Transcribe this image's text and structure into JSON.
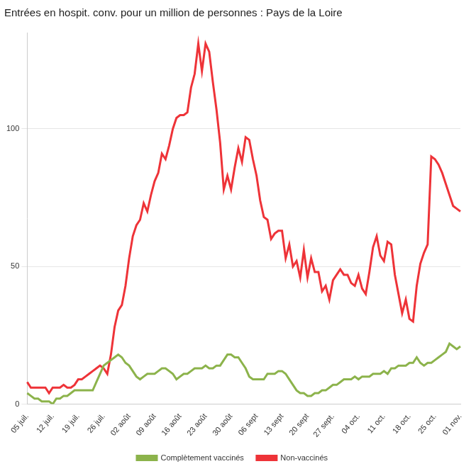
{
  "chart_data": {
    "type": "line",
    "title": "Entrées en hospit. conv. pour un million de personnes : Pays de la Loire",
    "categories": [
      "05 juil.",
      null,
      null,
      null,
      null,
      null,
      null,
      "12 juil.",
      null,
      null,
      null,
      null,
      null,
      null,
      "19 juil.",
      null,
      null,
      null,
      null,
      null,
      null,
      "26 juil.",
      null,
      null,
      null,
      null,
      null,
      null,
      "02 août",
      null,
      null,
      null,
      null,
      null,
      null,
      "09 août",
      null,
      null,
      null,
      null,
      null,
      null,
      "16 août",
      null,
      null,
      null,
      null,
      null,
      null,
      "23 août",
      null,
      null,
      null,
      null,
      null,
      null,
      "30 août",
      null,
      null,
      null,
      null,
      null,
      null,
      "06 sept",
      null,
      null,
      null,
      null,
      null,
      null,
      "13 sept",
      null,
      null,
      null,
      null,
      null,
      null,
      "20 sept",
      null,
      null,
      null,
      null,
      null,
      null,
      "27 sept.",
      null,
      null,
      null,
      null,
      null,
      null,
      "04 oct.",
      null,
      null,
      null,
      null,
      null,
      null,
      "11 oct.",
      null,
      null,
      null,
      null,
      null,
      null,
      "18 oct.",
      null,
      null,
      null,
      null,
      null,
      null,
      "25 oct.",
      null,
      null,
      null,
      null,
      null,
      null,
      "01 nov."
    ],
    "series": [
      {
        "name": "Complètement vaccinés",
        "color": "#8cb34b",
        "values": [
          4,
          3,
          2,
          2,
          1,
          1,
          1,
          0,
          2,
          2,
          3,
          3,
          4,
          5,
          5,
          5,
          5,
          5,
          5,
          8,
          11,
          14,
          15,
          16,
          17,
          18,
          17,
          15,
          14,
          12,
          10,
          9,
          10,
          11,
          11,
          11,
          12,
          13,
          13,
          12,
          11,
          9,
          10,
          11,
          11,
          12,
          13,
          13,
          13,
          14,
          13,
          13,
          14,
          14,
          16,
          18,
          18,
          17,
          17,
          15,
          13,
          10,
          9,
          9,
          9,
          9,
          11,
          11,
          11,
          12,
          12,
          11,
          9,
          7,
          5,
          4,
          4,
          3,
          3,
          4,
          4,
          5,
          5,
          6,
          7,
          7,
          8,
          9,
          9,
          9,
          10,
          9,
          10,
          10,
          10,
          11,
          11,
          11,
          12,
          11,
          13,
          13,
          14,
          14,
          14,
          15,
          15,
          17,
          15,
          14,
          15,
          15,
          16,
          17,
          18,
          19,
          22,
          21,
          20,
          21
        ]
      },
      {
        "name": "Non-vaccinés",
        "color": "#ee3338",
        "values": [
          8,
          6,
          6,
          6,
          6,
          6,
          4,
          6,
          6,
          6,
          7,
          6,
          6,
          7,
          9,
          9,
          10,
          11,
          12,
          13,
          14,
          13,
          11,
          18,
          28,
          34,
          36,
          43,
          53,
          61,
          65,
          67,
          73,
          70,
          76,
          81,
          84,
          91,
          89,
          94,
          100,
          104,
          105,
          105,
          106,
          115,
          120,
          131,
          121,
          131,
          128,
          117,
          107,
          95,
          78,
          83,
          78,
          86,
          93,
          88,
          97,
          96,
          89,
          83,
          74,
          68,
          67,
          60,
          62,
          63,
          63,
          53,
          58,
          50,
          52,
          46,
          56,
          46,
          53,
          48,
          48,
          41,
          43,
          38,
          45,
          47,
          49,
          47,
          47,
          44,
          43,
          47,
          42,
          40,
          48,
          57,
          61,
          54,
          52,
          59,
          58,
          47,
          40,
          33,
          38,
          31,
          30,
          43,
          51,
          55,
          58,
          90,
          89,
          87,
          84,
          80,
          76,
          72,
          71,
          70
        ]
      }
    ],
    "ylim": [
      0,
      135
    ],
    "yticks": [
      0,
      50,
      100
    ],
    "grid": true,
    "legend": "bottom"
  }
}
